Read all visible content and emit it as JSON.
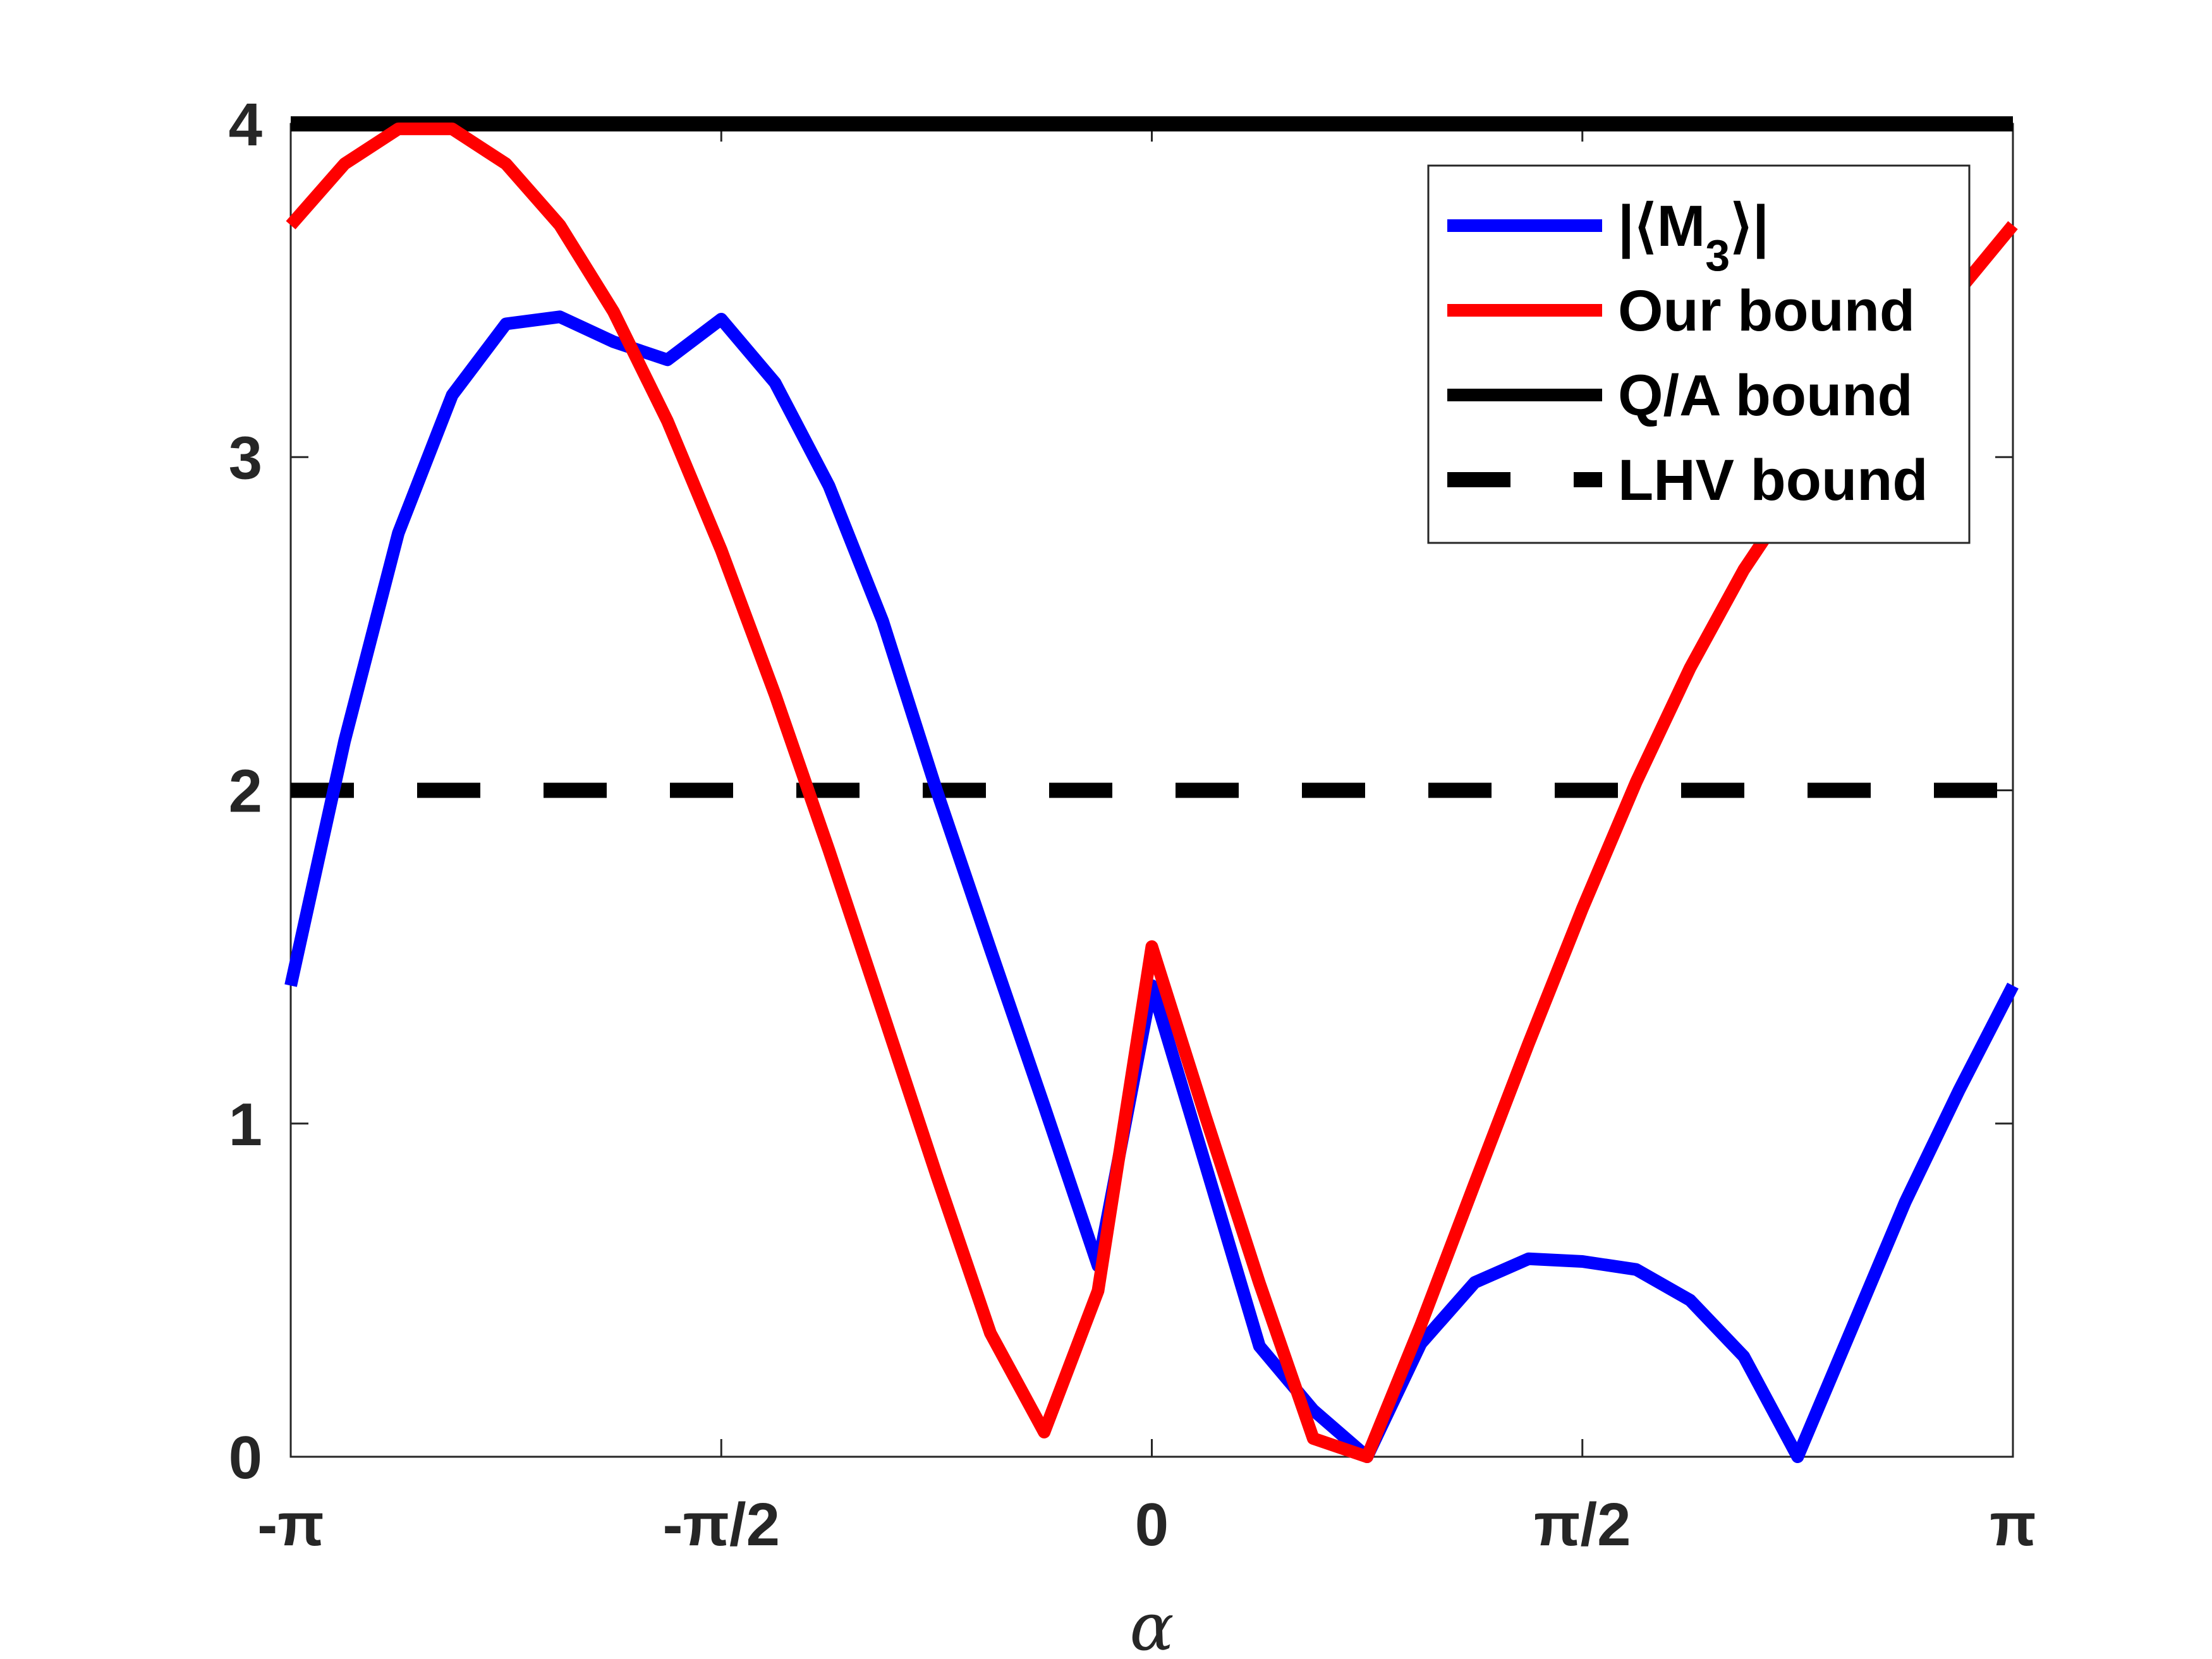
{
  "chart_data": {
    "type": "line",
    "title": "",
    "xlabel": "α",
    "ylabel": "",
    "xlim": [
      -3.14159265,
      3.14159265
    ],
    "ylim": [
      0,
      4
    ],
    "grid": false,
    "legend_position": "top-right",
    "x_ticks": [
      {
        "value": -3.14159265,
        "label": "-π"
      },
      {
        "value": -1.57079633,
        "label": "-π/2"
      },
      {
        "value": 0,
        "label": "0"
      },
      {
        "value": 1.57079633,
        "label": "π/2"
      },
      {
        "value": 3.14159265,
        "label": "π"
      }
    ],
    "y_ticks": [
      {
        "value": 0,
        "label": "0"
      },
      {
        "value": 1,
        "label": "1"
      },
      {
        "value": 2,
        "label": "2"
      },
      {
        "value": 3,
        "label": "3"
      },
      {
        "value": 4,
        "label": "4"
      }
    ],
    "series": [
      {
        "name": "|⟨M3⟩|",
        "color": "#0000ff",
        "style": "solid",
        "x": [
          -3.1416,
          -2.9452,
          -2.7489,
          -2.5525,
          -2.3562,
          -2.1598,
          -1.9635,
          -1.7671,
          -1.5708,
          -1.3744,
          -1.1781,
          -0.9817,
          -0.7854,
          -0.589,
          -0.3927,
          -0.1963,
          0.0,
          0.1963,
          0.3927,
          0.589,
          0.7854,
          0.9817,
          1.1781,
          1.3744,
          1.5708,
          1.7671,
          1.9635,
          2.1598,
          2.3562,
          2.5525,
          2.7489,
          2.9452,
          3.1416
        ],
        "y": [
          1.414,
          2.148,
          2.772,
          3.186,
          3.4,
          3.421,
          3.346,
          3.292,
          3.414,
          3.223,
          2.914,
          2.508,
          2.0,
          1.523,
          1.052,
          0.573,
          1.414,
          0.875,
          0.332,
          0.14,
          0.0,
          0.34,
          0.523,
          0.594,
          0.586,
          0.562,
          0.47,
          0.301,
          0.0,
          0.382,
          0.765,
          1.1,
          1.414
        ]
      },
      {
        "name": "Our bound",
        "color": "#ff0000",
        "style": "solid",
        "x": [
          -3.1416,
          -2.9452,
          -2.7489,
          -2.5525,
          -2.3562,
          -2.1598,
          -1.9635,
          -1.7671,
          -1.5708,
          -1.3744,
          -1.1781,
          -0.9817,
          -0.7854,
          -0.589,
          -0.3927,
          -0.1963,
          0.0,
          0.1963,
          0.3927,
          0.589,
          0.7854,
          0.9817,
          1.1781,
          1.3744,
          1.5708,
          1.7671,
          1.9635,
          2.1598,
          2.3562,
          2.5525,
          2.7489,
          2.9452,
          3.1416
        ],
        "y": [
          3.696,
          3.88,
          3.985,
          3.985,
          3.88,
          3.696,
          3.436,
          3.108,
          2.721,
          2.287,
          1.82,
          1.334,
          0.845,
          0.371,
          0.074,
          0.498,
          1.531,
          1.02,
          0.521,
          0.055,
          0.0,
          0.396,
          0.82,
          1.24,
          1.645,
          2.025,
          2.367,
          2.662,
          2.903,
          3.088,
          3.272,
          3.5,
          3.696
        ]
      },
      {
        "name": "Q/A bound",
        "color": "#000000",
        "style": "solid",
        "x": [
          -3.1416,
          3.1416
        ],
        "y": [
          4,
          4
        ]
      },
      {
        "name": "LHV bound",
        "color": "#000000",
        "style": "dashed",
        "x": [
          -3.1416,
          3.1416
        ],
        "y": [
          2,
          2
        ]
      }
    ],
    "legend": [
      {
        "label_main": "|⟨M",
        "label_sub": "3",
        "label_end": "⟩|"
      },
      {
        "label_main": "Our bound",
        "label_sub": "",
        "label_end": ""
      },
      {
        "label_main": "Q/A bound",
        "label_sub": "",
        "label_end": ""
      },
      {
        "label_main": "LHV bound",
        "label_sub": "",
        "label_end": ""
      }
    ]
  }
}
